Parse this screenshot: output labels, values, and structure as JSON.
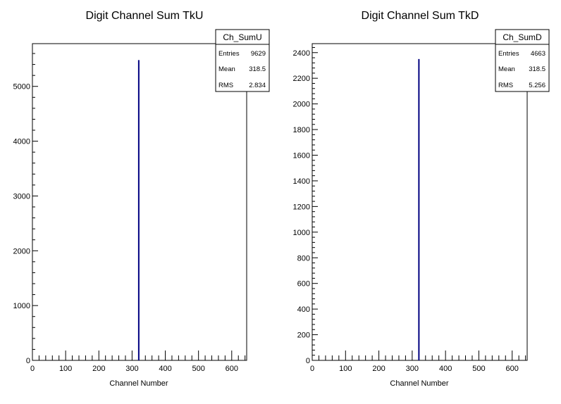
{
  "chart_data": [
    {
      "type": "bar",
      "title": "Digit Channel Sum TkU",
      "xlabel": "Channel Number",
      "ylabel": "",
      "xlim": [
        0,
        645
      ],
      "ylim": [
        0,
        5780
      ],
      "x_ticks": [
        0,
        100,
        200,
        300,
        400,
        500,
        600
      ],
      "y_ticks": [
        0,
        1000,
        2000,
        3000,
        4000,
        5000
      ],
      "bins": [
        {
          "x": 318,
          "value": 5480
        }
      ],
      "color": "#000080",
      "grid": false,
      "stats_box": {
        "name": "Ch_SumU",
        "rows": [
          {
            "label": "Entries",
            "value": "9629"
          },
          {
            "label": "Mean",
            "value": "318.5"
          },
          {
            "label": "RMS",
            "value": "2.834"
          }
        ]
      }
    },
    {
      "type": "bar",
      "title": "Digit Channel Sum TkD",
      "xlabel": "Channel Number",
      "ylabel": "",
      "xlim": [
        0,
        645
      ],
      "ylim": [
        0,
        2470
      ],
      "x_ticks": [
        0,
        100,
        200,
        300,
        400,
        500,
        600
      ],
      "y_ticks": [
        0,
        200,
        400,
        600,
        800,
        1000,
        1200,
        1400,
        1600,
        1800,
        2000,
        2200,
        2400
      ],
      "bins": [
        {
          "x": 318,
          "value": 2350
        }
      ],
      "color": "#000080",
      "grid": false,
      "stats_box": {
        "name": "Ch_SumD",
        "rows": [
          {
            "label": "Entries",
            "value": "4663"
          },
          {
            "label": "Mean",
            "value": "318.5"
          },
          {
            "label": "RMS",
            "value": "5.256"
          }
        ]
      }
    }
  ]
}
